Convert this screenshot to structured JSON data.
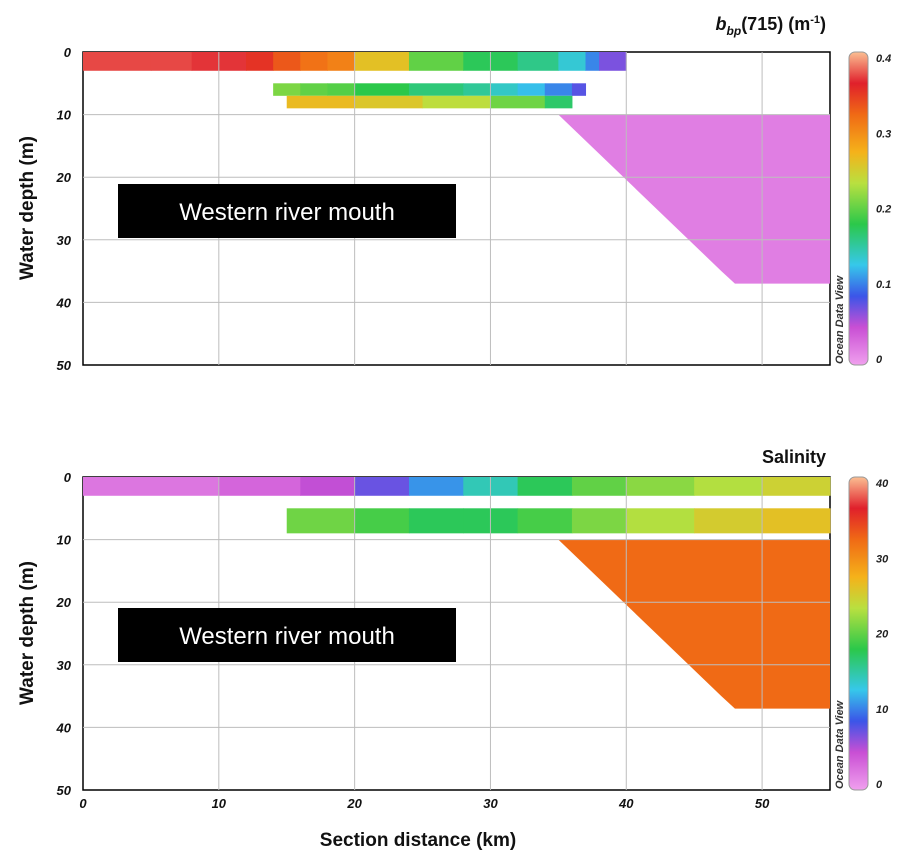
{
  "chart_data": [
    {
      "type": "heatmap",
      "title": "",
      "colorbar_title": {
        "main": "b",
        "sub": "bp",
        "rest": "(715) (m",
        "sup": "-1",
        "close": ")"
      },
      "xlabel": "",
      "ylabel": "Water depth (m)",
      "xlim": [
        0,
        55
      ],
      "ylim": [
        0,
        50
      ],
      "y_inverted": true,
      "x_ticks": [
        0,
        10,
        20,
        30,
        40,
        50
      ],
      "y_ticks": [
        0,
        10,
        20,
        30,
        40,
        50
      ],
      "grid": true,
      "colorbar": {
        "min": 0,
        "max": 0.4,
        "ticks": [
          "0.4",
          "0.3",
          "0.2",
          "0.1",
          "0"
        ],
        "tag": "Ocean Data View"
      },
      "annotation": "Western river mouth",
      "layers": [
        {
          "x": [
            0,
            5,
            8,
            12,
            14,
            16,
            18,
            20,
            24,
            28,
            32,
            35,
            37,
            38,
            40
          ],
          "value_at_x": [
            0.37,
            0.37,
            0.37,
            0.36,
            0.34,
            0.32,
            0.31,
            0.3,
            0.22,
            0.18,
            0.17,
            0.15,
            0.12,
            0.09,
            0.05
          ],
          "depth_top": 0,
          "depth_bottom": 3
        },
        {
          "x": [
            14,
            16,
            18,
            20,
            24,
            28,
            30,
            32,
            34,
            36,
            37
          ],
          "value_at_x": [
            0.22,
            0.2,
            0.2,
            0.19,
            0.17,
            0.16,
            0.15,
            0.13,
            0.12,
            0.09,
            0.07
          ],
          "depth_top": 5,
          "depth_bottom": 7
        },
        {
          "x": [
            15,
            20,
            25,
            30,
            34,
            36
          ],
          "value_at_x": [
            0.27,
            0.26,
            0.25,
            0.22,
            0.19,
            0.15
          ],
          "depth_top": 7,
          "depth_bottom": 9
        }
      ],
      "deep_region": {
        "x_range": [
          35,
          55
        ],
        "depth_range": [
          10,
          37
        ],
        "value": 0.02
      }
    },
    {
      "type": "heatmap",
      "title": "",
      "colorbar_title": "Salinity",
      "xlabel": "Section distance (km)",
      "ylabel": "Water depth (m)",
      "xlim": [
        0,
        55
      ],
      "ylim": [
        0,
        50
      ],
      "y_inverted": true,
      "x_ticks": [
        0,
        10,
        20,
        30,
        40,
        50
      ],
      "y_ticks": [
        0,
        10,
        20,
        30,
        40,
        50
      ],
      "grid": true,
      "colorbar": {
        "min": 0,
        "max": 40,
        "ticks": [
          "40",
          "30",
          "20",
          "10",
          "0"
        ],
        "tag": "Ocean Data View"
      },
      "annotation": "Western river mouth",
      "layers": [
        {
          "x": [
            0,
            10,
            16,
            20,
            24,
            28,
            32,
            36,
            40,
            45,
            50,
            55
          ],
          "value_at_x": [
            2,
            3,
            4,
            6,
            9,
            13,
            16,
            19,
            21,
            22,
            24,
            25
          ],
          "depth_top": 0,
          "depth_bottom": 3
        },
        {
          "x": [
            15,
            20,
            24,
            28,
            32,
            36,
            40,
            45,
            50,
            55
          ],
          "value_at_x": [
            21,
            20,
            18,
            17,
            18,
            20,
            22,
            24,
            26,
            26
          ],
          "depth_top": 5,
          "depth_bottom": 9
        }
      ],
      "deep_region": {
        "x_range": [
          35,
          55
        ],
        "depth_range": [
          10,
          37
        ],
        "value": 32
      }
    }
  ]
}
